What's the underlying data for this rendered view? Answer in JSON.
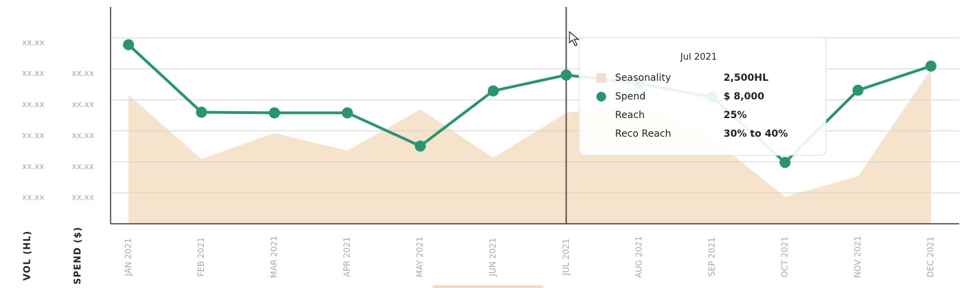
{
  "chart_data": {
    "type": "line-area",
    "categories": [
      "JAN 2021",
      "FEB 2021",
      "MAR 2021",
      "APR 2021",
      "MAY 2021",
      "JUN 2021",
      "JUL 2021",
      "AUG 2021",
      "SEP 2021",
      "OCT 2021",
      "NOV 2021",
      "DEC 2021"
    ],
    "ylabel": "VOL (HL)",
    "y2label": "SPEND ($)",
    "ylim": [
      0,
      7
    ],
    "yticks": [
      {
        "value": 6,
        "label": "xx.xx"
      },
      {
        "value": 5,
        "label": "xx.xx"
      },
      {
        "value": 4,
        "label": "xx.xx"
      },
      {
        "value": 3,
        "label": "xx.xx"
      },
      {
        "value": 2,
        "label": "xx.xx"
      },
      {
        "value": 1,
        "label": "xx.xx"
      }
    ],
    "y2lim": [
      0,
      7
    ],
    "y2ticks": [
      {
        "value": 5,
        "label": "xx.xx"
      },
      {
        "value": 4,
        "label": "xx.xx"
      },
      {
        "value": 3,
        "label": "xx.xx"
      },
      {
        "value": 2,
        "label": "xx.xx"
      },
      {
        "value": 1,
        "label": "xx.xx"
      }
    ],
    "grid": true,
    "series": [
      {
        "name": "Seasonality",
        "kind": "area",
        "color": "#f5e3cc",
        "values": [
          4.16,
          2.09,
          2.93,
          2.36,
          3.69,
          2.13,
          3.58,
          3.87,
          2.76,
          0.87,
          1.53,
          4.98
        ]
      },
      {
        "name": "Spend",
        "kind": "line",
        "axis": "y2",
        "color": "#2a9470",
        "values": [
          5.78,
          3.6,
          3.58,
          3.58,
          2.51,
          4.29,
          4.8,
          4.53,
          4.09,
          1.98,
          4.31,
          5.09
        ]
      }
    ],
    "tooltip": {
      "title": "Jul 2021",
      "rows": [
        {
          "label": "Seasonality",
          "value": "2,500HL"
        },
        {
          "label": "Spend",
          "value": "$ 8,000"
        },
        {
          "label": "Reach",
          "value": "25%"
        },
        {
          "label": "Reco Reach",
          "value": "30% to 40%"
        }
      ]
    }
  }
}
